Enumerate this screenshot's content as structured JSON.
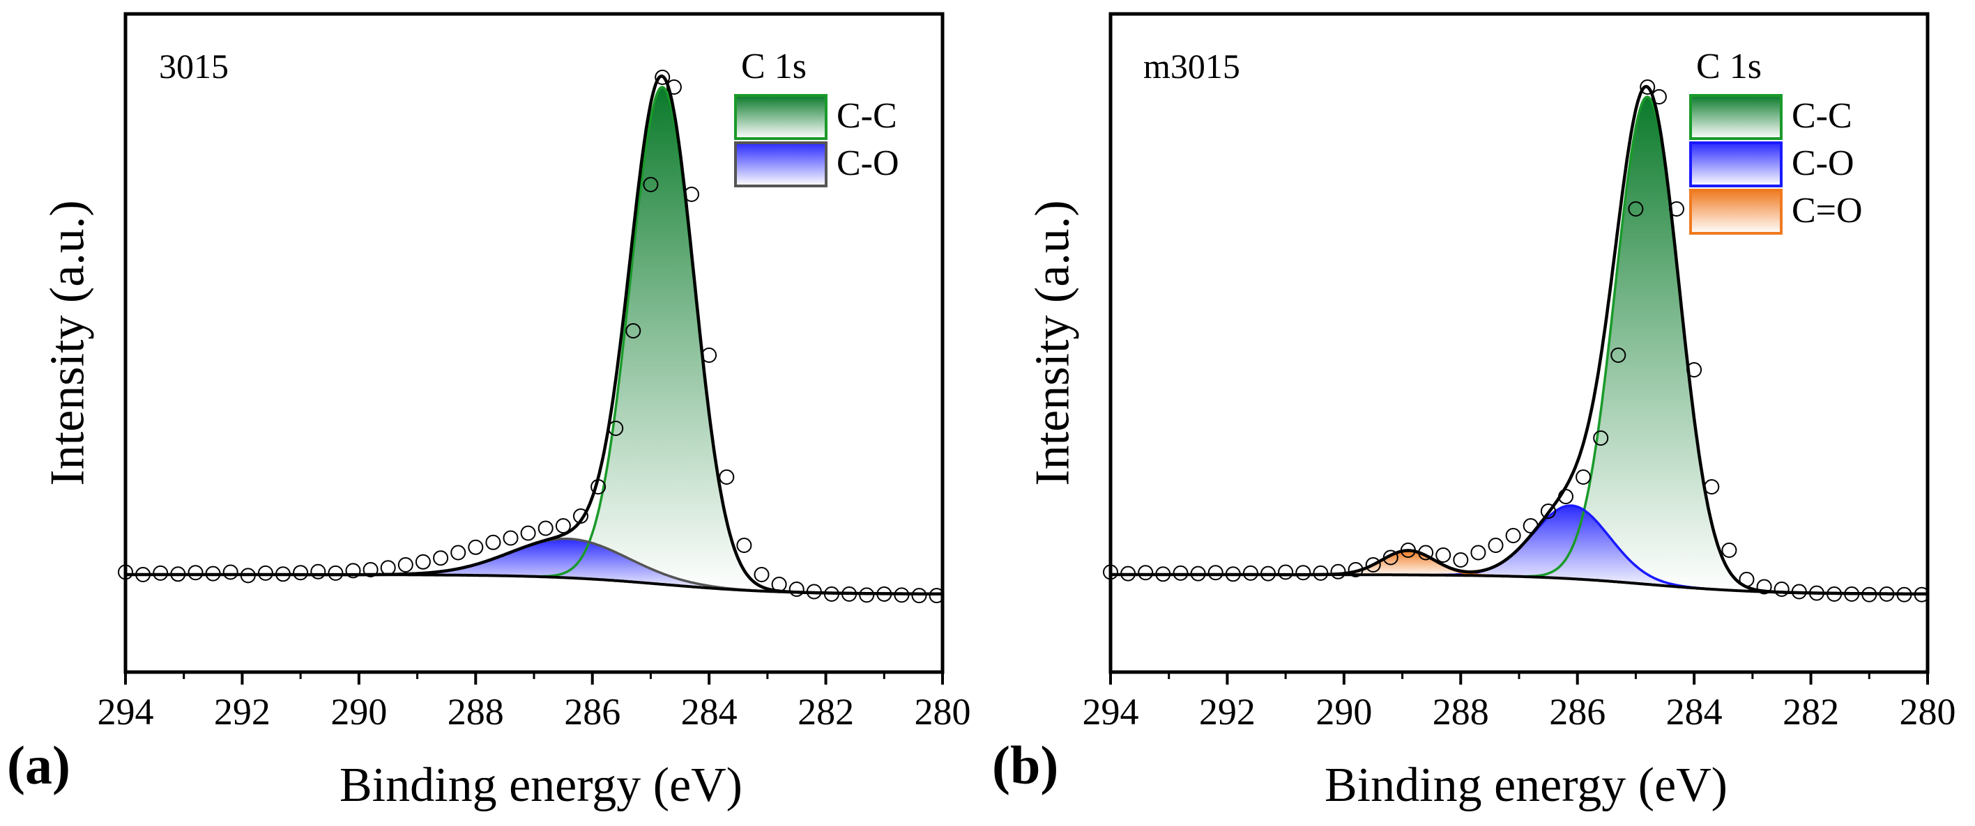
{
  "chart_data": [
    {
      "type": "line",
      "panel_label": "(a)",
      "sample_label": "3015",
      "legend_title": "C 1s",
      "xlabel": "Binding energy (eV)",
      "ylabel": "Intensity (a.u.)",
      "xlim": [
        294,
        280
      ],
      "ylim": [
        -0.2,
        1.15
      ],
      "x_ticks": [
        294,
        292,
        290,
        288,
        286,
        284,
        282,
        280
      ],
      "x_tick_labels": [
        "294",
        "292",
        "290",
        "288",
        "286",
        "284",
        "282",
        "280"
      ],
      "background": {
        "high_be_level": 0.0,
        "low_be_level": -0.04,
        "step_center": 284.8,
        "step_width": 1.0
      },
      "peaks": [
        {
          "name": "C-C",
          "center": 284.8,
          "height": 1.02,
          "sigma": 0.55,
          "top_color": "#0a7a2a",
          "bottom_color": "#ffffff",
          "line_color": "#1a9a2a"
        },
        {
          "name": "C-O",
          "center": 286.4,
          "height": 0.08,
          "sigma": 1.0,
          "top_color": "#2a2aff",
          "bottom_color": "#ffffff",
          "line_color": "#555555"
        }
      ],
      "raw_data_note": "open circles follow the envelope with slight noise",
      "raw_points": [
        [
          294.0,
          0.005
        ],
        [
          293.7,
          0.0
        ],
        [
          293.4,
          0.003
        ],
        [
          293.1,
          0.001
        ],
        [
          292.8,
          0.004
        ],
        [
          292.5,
          0.002
        ],
        [
          292.2,
          0.005
        ],
        [
          291.9,
          -0.002
        ],
        [
          291.6,
          0.003
        ],
        [
          291.3,
          0.001
        ],
        [
          291.0,
          0.004
        ],
        [
          290.7,
          0.006
        ],
        [
          290.4,
          0.003
        ],
        [
          290.1,
          0.008
        ],
        [
          289.8,
          0.01
        ],
        [
          289.5,
          0.014
        ],
        [
          289.2,
          0.02
        ],
        [
          288.9,
          0.026
        ],
        [
          288.6,
          0.034
        ],
        [
          288.3,
          0.045
        ],
        [
          288.0,
          0.056
        ],
        [
          287.7,
          0.066
        ],
        [
          287.4,
          0.075
        ],
        [
          287.1,
          0.085
        ],
        [
          286.8,
          0.095
        ],
        [
          286.5,
          0.1
        ],
        [
          286.2,
          0.12
        ],
        [
          285.9,
          0.18
        ],
        [
          285.6,
          0.3
        ],
        [
          285.3,
          0.5
        ],
        [
          285.0,
          0.8
        ],
        [
          284.8,
          1.02
        ],
        [
          284.6,
          1.0
        ],
        [
          284.3,
          0.78
        ],
        [
          284.0,
          0.45
        ],
        [
          283.7,
          0.2
        ],
        [
          283.4,
          0.06
        ],
        [
          283.1,
          0.0
        ],
        [
          282.8,
          -0.02
        ],
        [
          282.5,
          -0.03
        ],
        [
          282.2,
          -0.035
        ],
        [
          281.9,
          -0.04
        ],
        [
          281.6,
          -0.04
        ],
        [
          281.3,
          -0.042
        ],
        [
          281.0,
          -0.04
        ],
        [
          280.7,
          -0.042
        ],
        [
          280.4,
          -0.043
        ],
        [
          280.1,
          -0.043
        ]
      ]
    },
    {
      "type": "line",
      "panel_label": "(b)",
      "sample_label": "m3015",
      "legend_title": "C 1s",
      "xlabel": "Binding energy (eV)",
      "ylabel": "Intensity (a.u.)",
      "xlim": [
        294,
        280
      ],
      "ylim": [
        -0.2,
        1.15
      ],
      "x_ticks": [
        294,
        292,
        290,
        288,
        286,
        284,
        282,
        280
      ],
      "x_tick_labels": [
        "294",
        "292",
        "290",
        "288",
        "286",
        "284",
        "282",
        "280"
      ],
      "background": {
        "high_be_level": 0.0,
        "low_be_level": -0.04,
        "step_center": 284.8,
        "step_width": 1.0
      },
      "peaks": [
        {
          "name": "C-C",
          "center": 284.8,
          "height": 1.0,
          "sigma": 0.55,
          "top_color": "#0a7a2a",
          "bottom_color": "#ffffff",
          "line_color": "#1a9a2a"
        },
        {
          "name": "C-O",
          "center": 286.1,
          "height": 0.15,
          "sigma": 0.65,
          "top_color": "#2a2aff",
          "bottom_color": "#ffffff",
          "line_color": "#1a1aff"
        },
        {
          "name": "C=O",
          "center": 288.9,
          "height": 0.05,
          "sigma": 0.45,
          "top_color": "#f07a20",
          "bottom_color": "#ffffff",
          "line_color": "#f07a20"
        }
      ],
      "raw_points": [
        [
          294.0,
          0.005
        ],
        [
          293.7,
          0.002
        ],
        [
          293.4,
          0.004
        ],
        [
          293.1,
          0.001
        ],
        [
          292.8,
          0.003
        ],
        [
          292.5,
          0.002
        ],
        [
          292.2,
          0.004
        ],
        [
          291.9,
          0.001
        ],
        [
          291.6,
          0.003
        ],
        [
          291.3,
          0.002
        ],
        [
          291.0,
          0.005
        ],
        [
          290.7,
          0.004
        ],
        [
          290.4,
          0.003
        ],
        [
          290.1,
          0.006
        ],
        [
          289.8,
          0.01
        ],
        [
          289.5,
          0.02
        ],
        [
          289.2,
          0.035
        ],
        [
          288.9,
          0.05
        ],
        [
          288.6,
          0.045
        ],
        [
          288.3,
          0.04
        ],
        [
          288.0,
          0.03
        ],
        [
          287.7,
          0.045
        ],
        [
          287.4,
          0.06
        ],
        [
          287.1,
          0.08
        ],
        [
          286.8,
          0.1
        ],
        [
          286.5,
          0.13
        ],
        [
          286.2,
          0.16
        ],
        [
          285.9,
          0.2
        ],
        [
          285.6,
          0.28
        ],
        [
          285.3,
          0.45
        ],
        [
          285.0,
          0.75
        ],
        [
          284.8,
          1.0
        ],
        [
          284.6,
          0.98
        ],
        [
          284.3,
          0.75
        ],
        [
          284.0,
          0.42
        ],
        [
          283.7,
          0.18
        ],
        [
          283.4,
          0.05
        ],
        [
          283.1,
          -0.01
        ],
        [
          282.8,
          -0.025
        ],
        [
          282.5,
          -0.03
        ],
        [
          282.2,
          -0.035
        ],
        [
          281.9,
          -0.038
        ],
        [
          281.6,
          -0.04
        ],
        [
          281.3,
          -0.04
        ],
        [
          281.0,
          -0.041
        ],
        [
          280.7,
          -0.04
        ],
        [
          280.4,
          -0.041
        ],
        [
          280.1,
          -0.041
        ]
      ]
    }
  ]
}
